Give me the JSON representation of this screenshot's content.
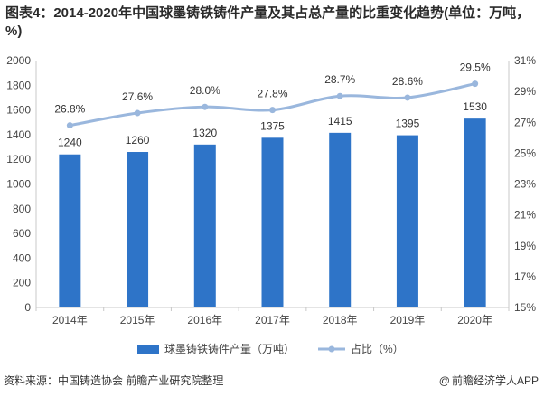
{
  "header": {
    "title": "图表4：2014-2020年中国球墨铸铁铸件产量及其占总产量的比重变化趋势(单位：万吨，%)"
  },
  "chart_data": {
    "type": "bar",
    "categories": [
      "2014年",
      "2015年",
      "2016年",
      "2017年",
      "2018年",
      "2019年",
      "2020年"
    ],
    "series": [
      {
        "name": "球墨铸铁铸件产量（万吨）",
        "type": "bar",
        "axis": "left",
        "values": [
          1240,
          1260,
          1320,
          1375,
          1415,
          1395,
          1530
        ],
        "labels": [
          "1240",
          "1260",
          "1320",
          "1375",
          "1415",
          "1395",
          "1530"
        ]
      },
      {
        "name": "占比（%）",
        "type": "line",
        "axis": "right",
        "values": [
          26.8,
          27.6,
          28.0,
          27.8,
          28.7,
          28.6,
          29.5
        ],
        "labels": [
          "26.8%",
          "27.6%",
          "28.0%",
          "27.8%",
          "28.7%",
          "28.6%",
          "29.5%"
        ]
      }
    ],
    "y_left": {
      "min": 0,
      "max": 2000,
      "step": 200,
      "ticks": [
        "0",
        "200",
        "400",
        "600",
        "800",
        "1000",
        "1200",
        "1400",
        "1600",
        "1800",
        "2000"
      ]
    },
    "y_right": {
      "min": 15,
      "max": 31,
      "step": 2,
      "ticks": [
        "15%",
        "17%",
        "19%",
        "21%",
        "23%",
        "25%",
        "27%",
        "29%",
        "31%"
      ]
    },
    "legend": {
      "position": "bottom",
      "bar_label": "球墨铸铁铸件产量（万吨）",
      "line_label": "占比（%）"
    },
    "colors": {
      "bar": "#2e74c8",
      "line": "#9ab7dd",
      "axis": "#c8c8c8"
    }
  },
  "footer": {
    "source": "资料来源：中国铸造协会 前瞻产业研究院整理",
    "brand_icon": "at-sign-icon",
    "brand": "前瞻经济学人APP"
  }
}
